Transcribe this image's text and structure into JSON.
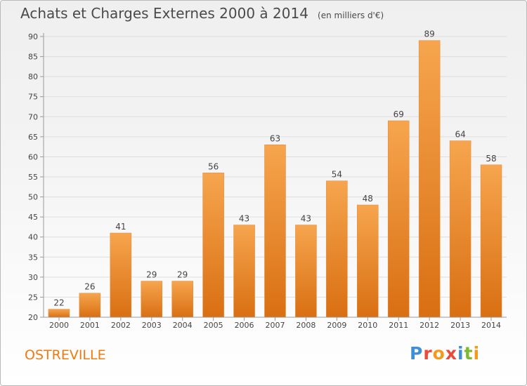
{
  "header": {
    "title": "Achats et Charges Externes 2000 à 2014",
    "unit": "(en milliers d'€)"
  },
  "footer": {
    "commune": "OSTREVILLE",
    "logo_letters": [
      "P",
      "r",
      "o",
      "x",
      "i",
      "t",
      "i"
    ]
  },
  "colors": {
    "bar_top": "#f6a54e",
    "bar_bottom": "#d96f12",
    "grid": "#dedede",
    "axis": "#9a9a9a",
    "commune_text": "#f07a10"
  },
  "chart_data": {
    "type": "bar",
    "title": "Achats et Charges Externes 2000 à 2014",
    "subtitle": "(en milliers d'€)",
    "xlabel": "",
    "ylabel": "",
    "categories": [
      "2000",
      "2001",
      "2002",
      "2003",
      "2004",
      "2005",
      "2006",
      "2007",
      "2008",
      "2009",
      "2010",
      "2011",
      "2012",
      "2013",
      "2014"
    ],
    "values": [
      22,
      26,
      41,
      29,
      29,
      56,
      43,
      63,
      43,
      54,
      48,
      69,
      89,
      64,
      58
    ],
    "ylim": [
      20,
      90
    ],
    "yticks": [
      20,
      25,
      30,
      35,
      40,
      45,
      50,
      55,
      60,
      65,
      70,
      75,
      80,
      85,
      90
    ],
    "grid": true,
    "legend": "none"
  }
}
